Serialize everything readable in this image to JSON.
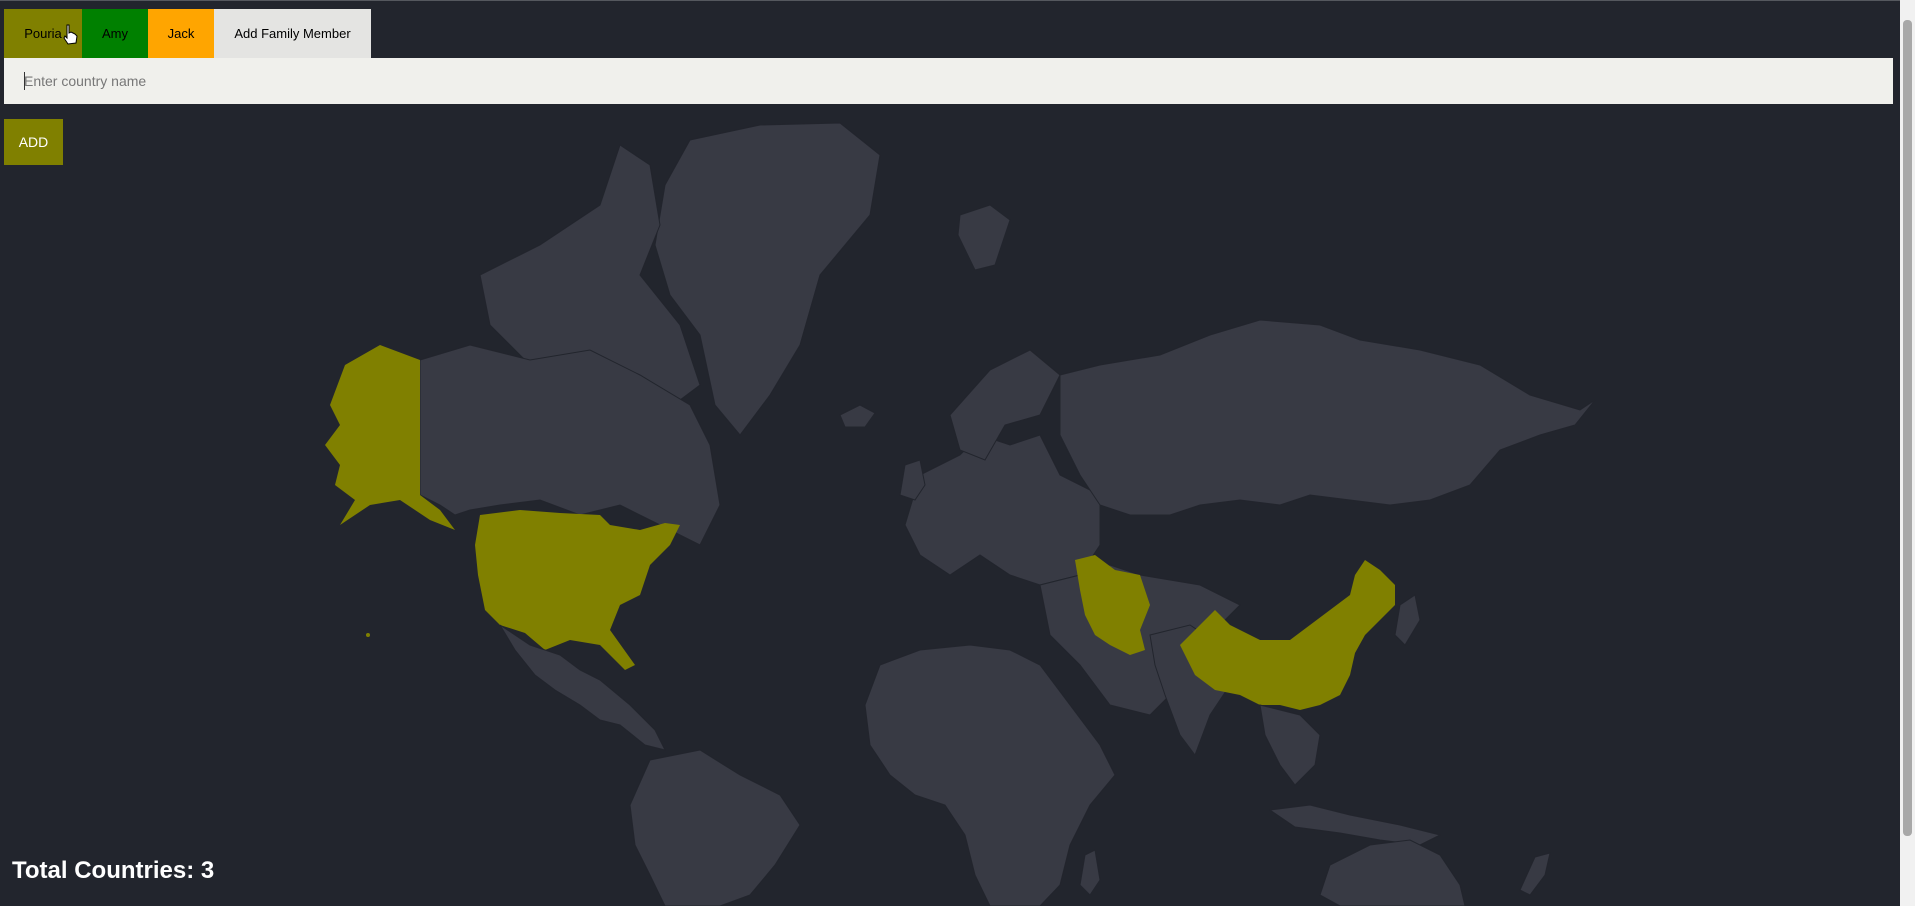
{
  "tabs": [
    {
      "label": "Pouria",
      "color": "#808000"
    },
    {
      "label": "Amy",
      "color": "#008000"
    },
    {
      "label": "Jack",
      "color": "#ffa500"
    },
    {
      "label": "Add Family Member",
      "color": "#e4e4e2"
    }
  ],
  "search": {
    "placeholder": "Enter country name",
    "value": ""
  },
  "add_button": {
    "label": "ADD",
    "color": "#808000"
  },
  "map": {
    "land_color": "#383a44",
    "highlight_color": "#808000",
    "highlighted_countries": [
      "United States",
      "Iran",
      "China"
    ]
  },
  "total": {
    "label": "Total Countries: 3"
  },
  "colors": {
    "background": "#22252d"
  }
}
